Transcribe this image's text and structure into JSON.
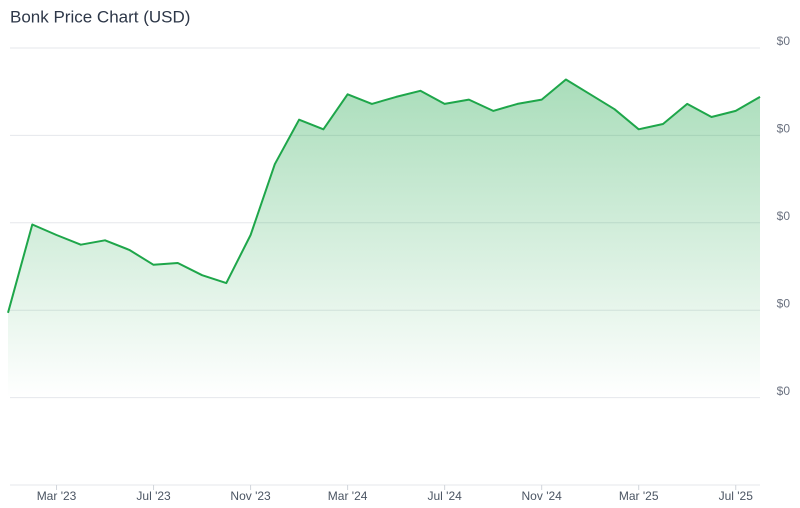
{
  "chart_data": {
    "type": "area",
    "title": "Bonk Price Chart (USD)",
    "x": [
      "2023-01",
      "2023-02",
      "2023-03",
      "2023-04",
      "2023-05",
      "2023-06",
      "2023-07",
      "2023-08",
      "2023-09",
      "2023-10",
      "2023-11",
      "2023-12",
      "2024-01",
      "2024-02",
      "2024-03",
      "2024-04",
      "2024-05",
      "2024-06",
      "2024-07",
      "2024-08",
      "2024-09",
      "2024-10",
      "2024-11",
      "2024-12",
      "2025-01",
      "2025-02",
      "2025-03",
      "2025-04",
      "2025-05",
      "2025-06",
      "2025-07",
      "2025-08"
    ],
    "values": [
      9.7e-06,
      1.98e-05,
      1.86e-05,
      1.75e-05,
      1.8e-05,
      1.69e-05,
      1.52e-05,
      1.54e-05,
      1.4e-05,
      1.31e-05,
      1.86e-05,
      2.67e-05,
      3.18e-05,
      3.07e-05,
      3.47e-05,
      3.36e-05,
      3.44e-05,
      3.51e-05,
      3.36e-05,
      3.41e-05,
      3.28e-05,
      3.36e-05,
      3.41e-05,
      3.64e-05,
      3.47e-05,
      3.3e-05,
      3.07e-05,
      3.13e-05,
      3.36e-05,
      3.21e-05,
      3.28e-05,
      3.44e-05
    ],
    "color": "#1ea64a",
    "xticks": [
      {
        "value": "2023-03",
        "label": "Mar '23"
      },
      {
        "value": "2023-07",
        "label": "Jul '23"
      },
      {
        "value": "2023-11",
        "label": "Nov '23"
      },
      {
        "value": "2024-03",
        "label": "Mar '24"
      },
      {
        "value": "2024-07",
        "label": "Jul '24"
      },
      {
        "value": "2024-11",
        "label": "Nov '24"
      },
      {
        "value": "2025-03",
        "label": "Mar '25"
      },
      {
        "value": "2025-07",
        "label": "Jul '25"
      }
    ],
    "ylim": [
      -1e-05,
      4e-05
    ],
    "yticks": [
      {
        "value": 0,
        "label": "$0"
      },
      {
        "value": 1e-05,
        "label": "$0"
      },
      {
        "value": 2e-05,
        "label": "$0"
      },
      {
        "value": 3e-05,
        "label": "$0"
      },
      {
        "value": 4e-05,
        "label": "$0"
      }
    ],
    "grid": true
  }
}
